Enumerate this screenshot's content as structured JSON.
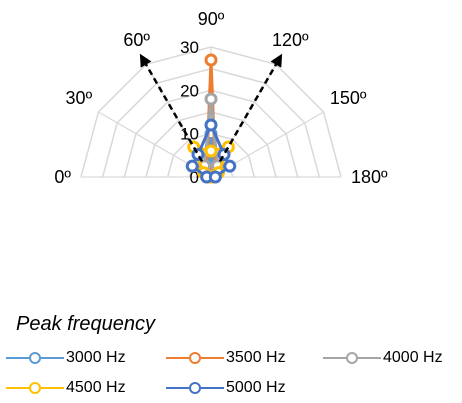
{
  "chart_data": {
    "type": "radar",
    "angle_labels": [
      "0º",
      "30º",
      "60º",
      "90º",
      "120º",
      "150º",
      "180º"
    ],
    "radial_ticks": [
      "0",
      "10",
      "20",
      "30"
    ],
    "radial_max": 30,
    "arrow_angles": [
      60,
      120
    ],
    "legend_title": "Peak frequency",
    "series": [
      {
        "name": "3000 Hz",
        "color": "#5b9bd5",
        "values": [
          0,
          0,
          1,
          10,
          1,
          0,
          0
        ]
      },
      {
        "name": "3500 Hz",
        "color": "#ed7d31",
        "values": [
          0,
          0,
          2,
          27,
          2,
          0,
          0
        ]
      },
      {
        "name": "4000 Hz",
        "color": "#a5a5a5",
        "values": [
          0,
          1,
          3,
          18,
          3,
          1,
          0
        ]
      },
      {
        "name": "4500 Hz",
        "color": "#ffc000",
        "values": [
          0,
          2,
          8,
          6,
          8,
          2,
          0
        ]
      },
      {
        "name": "5000 Hz",
        "color": "#4472c4",
        "values": [
          1,
          5,
          6,
          12,
          6,
          5,
          1
        ]
      }
    ]
  }
}
